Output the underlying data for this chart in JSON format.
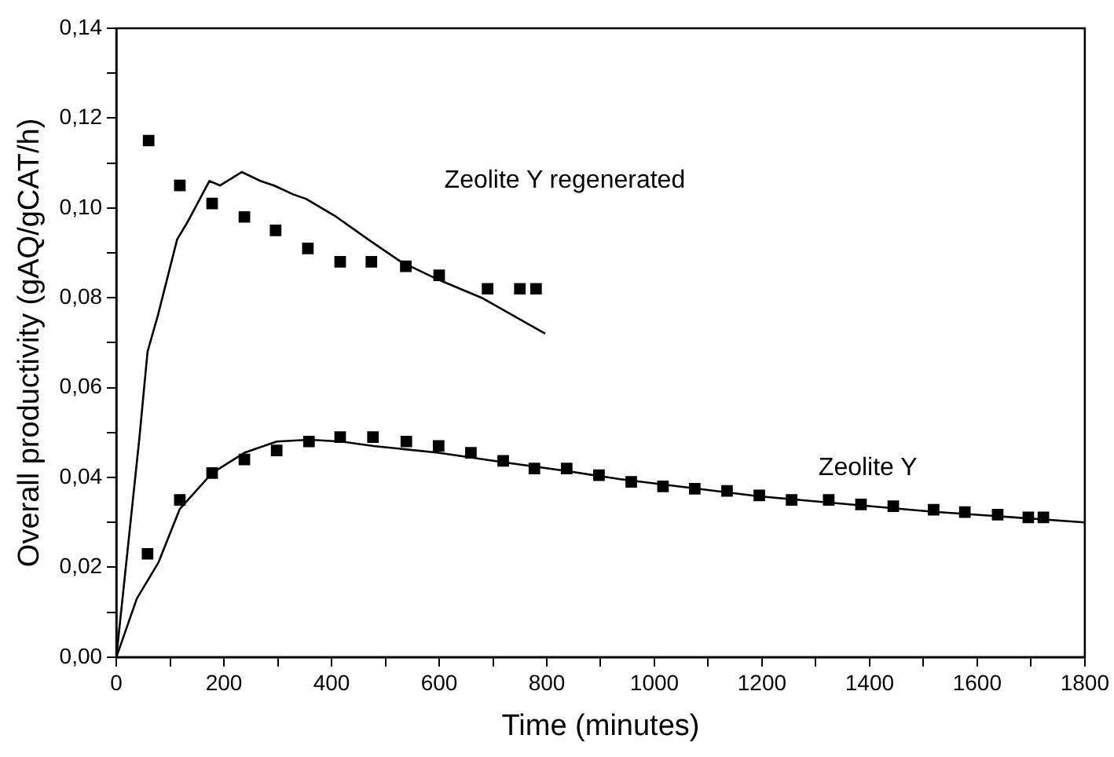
{
  "chart_data": {
    "type": "scatter",
    "xlabel": "Time (minutes)",
    "ylabel": "Overall productivity (gAQ/gCAT/h)",
    "xlim": [
      0,
      1800
    ],
    "ylim": [
      0,
      0.14
    ],
    "xticks": [
      0,
      {
        "value": 100,
        "label": null
      },
      200,
      {
        "value": 300,
        "label": null
      },
      400,
      {
        "value": 500,
        "label": null
      },
      600,
      {
        "value": 700,
        "label": null
      },
      800,
      {
        "value": 900,
        "label": null
      },
      1000,
      {
        "value": 1100,
        "label": null
      },
      1200,
      {
        "value": 1300,
        "label": null
      },
      1400,
      {
        "value": 1500,
        "label": null
      },
      1600,
      {
        "value": 1700,
        "label": null
      },
      1800
    ],
    "yticks": [
      {
        "value": 0,
        "label": "0,00"
      },
      {
        "value": 0.01,
        "label": null
      },
      {
        "value": 0.02,
        "label": "0,02"
      },
      {
        "value": 0.03,
        "label": null
      },
      {
        "value": 0.04,
        "label": "0,04"
      },
      {
        "value": 0.05,
        "label": null
      },
      {
        "value": 0.06,
        "label": "0,06"
      },
      {
        "value": 0.07,
        "label": null
      },
      {
        "value": 0.08,
        "label": "0,08"
      },
      {
        "value": 0.09,
        "label": null
      },
      {
        "value": 0.1,
        "label": "0,10"
      },
      {
        "value": 0.11,
        "label": null
      },
      {
        "value": 0.12,
        "label": "0,12"
      },
      {
        "value": 0.13,
        "label": null
      },
      {
        "value": 0.14,
        "label": "0,14"
      }
    ],
    "grid": false,
    "legend": false,
    "marker": "square",
    "series": [
      {
        "color": "#000000",
        "x": [
          60,
          118,
          178,
          238,
          296,
          356,
          416,
          474,
          538,
          600,
          690,
          750,
          780
        ],
        "values": [
          0.115,
          0.105,
          0.101,
          0.098,
          0.095,
          0.091,
          0.088,
          0.088,
          0.087,
          0.085,
          0.082,
          0.082,
          0.082
        ]
      },
      {
        "type": "line",
        "color": "#000000",
        "marker": "none",
        "x": [
          0,
          43,
          58,
          77,
          113,
          133,
          173,
          193,
          233,
          268,
          293,
          329,
          353,
          409,
          468,
          529,
          599,
          679,
          797
        ],
        "values": [
          0,
          0.049,
          0.068,
          0.076,
          0.093,
          0.097,
          0.106,
          0.105,
          0.108,
          0.106,
          0.105,
          0.103,
          0.102,
          0.098,
          0.093,
          0.088,
          0.084,
          0.08,
          0.072
        ]
      },
      {
        "color": "#000000",
        "x": [
          58,
          118,
          178,
          238,
          298,
          358,
          416,
          477,
          539,
          599,
          659,
          719,
          777,
          837,
          897,
          957,
          1016,
          1075,
          1135,
          1195,
          1255,
          1324,
          1384,
          1444,
          1519,
          1577,
          1638,
          1695,
          1723
        ],
        "values": [
          0.023,
          0.035,
          0.041,
          0.044,
          0.046,
          0.048,
          0.049,
          0.049,
          0.048,
          0.047,
          0.0455,
          0.0437,
          0.042,
          0.042,
          0.0405,
          0.039,
          0.038,
          0.0375,
          0.037,
          0.036,
          0.035,
          0.035,
          0.034,
          0.0336,
          0.0328,
          0.0323,
          0.0317,
          0.0311,
          0.0311
        ]
      },
      {
        "type": "line",
        "color": "#000000",
        "marker": "none",
        "x": [
          0,
          38,
          78,
          118,
          178,
          238,
          298,
          358,
          418,
          478,
          598,
          718,
          839,
          937,
          1194,
          1515,
          1800
        ],
        "values": [
          0,
          0.013,
          0.021,
          0.033,
          0.041,
          0.0455,
          0.048,
          0.0484,
          0.048,
          0.047,
          0.0455,
          0.0434,
          0.0414,
          0.0396,
          0.0358,
          0.0324,
          0.03
        ]
      }
    ],
    "annotations": [
      "Zeolite Y regenerated",
      "Zeolite Y"
    ]
  }
}
